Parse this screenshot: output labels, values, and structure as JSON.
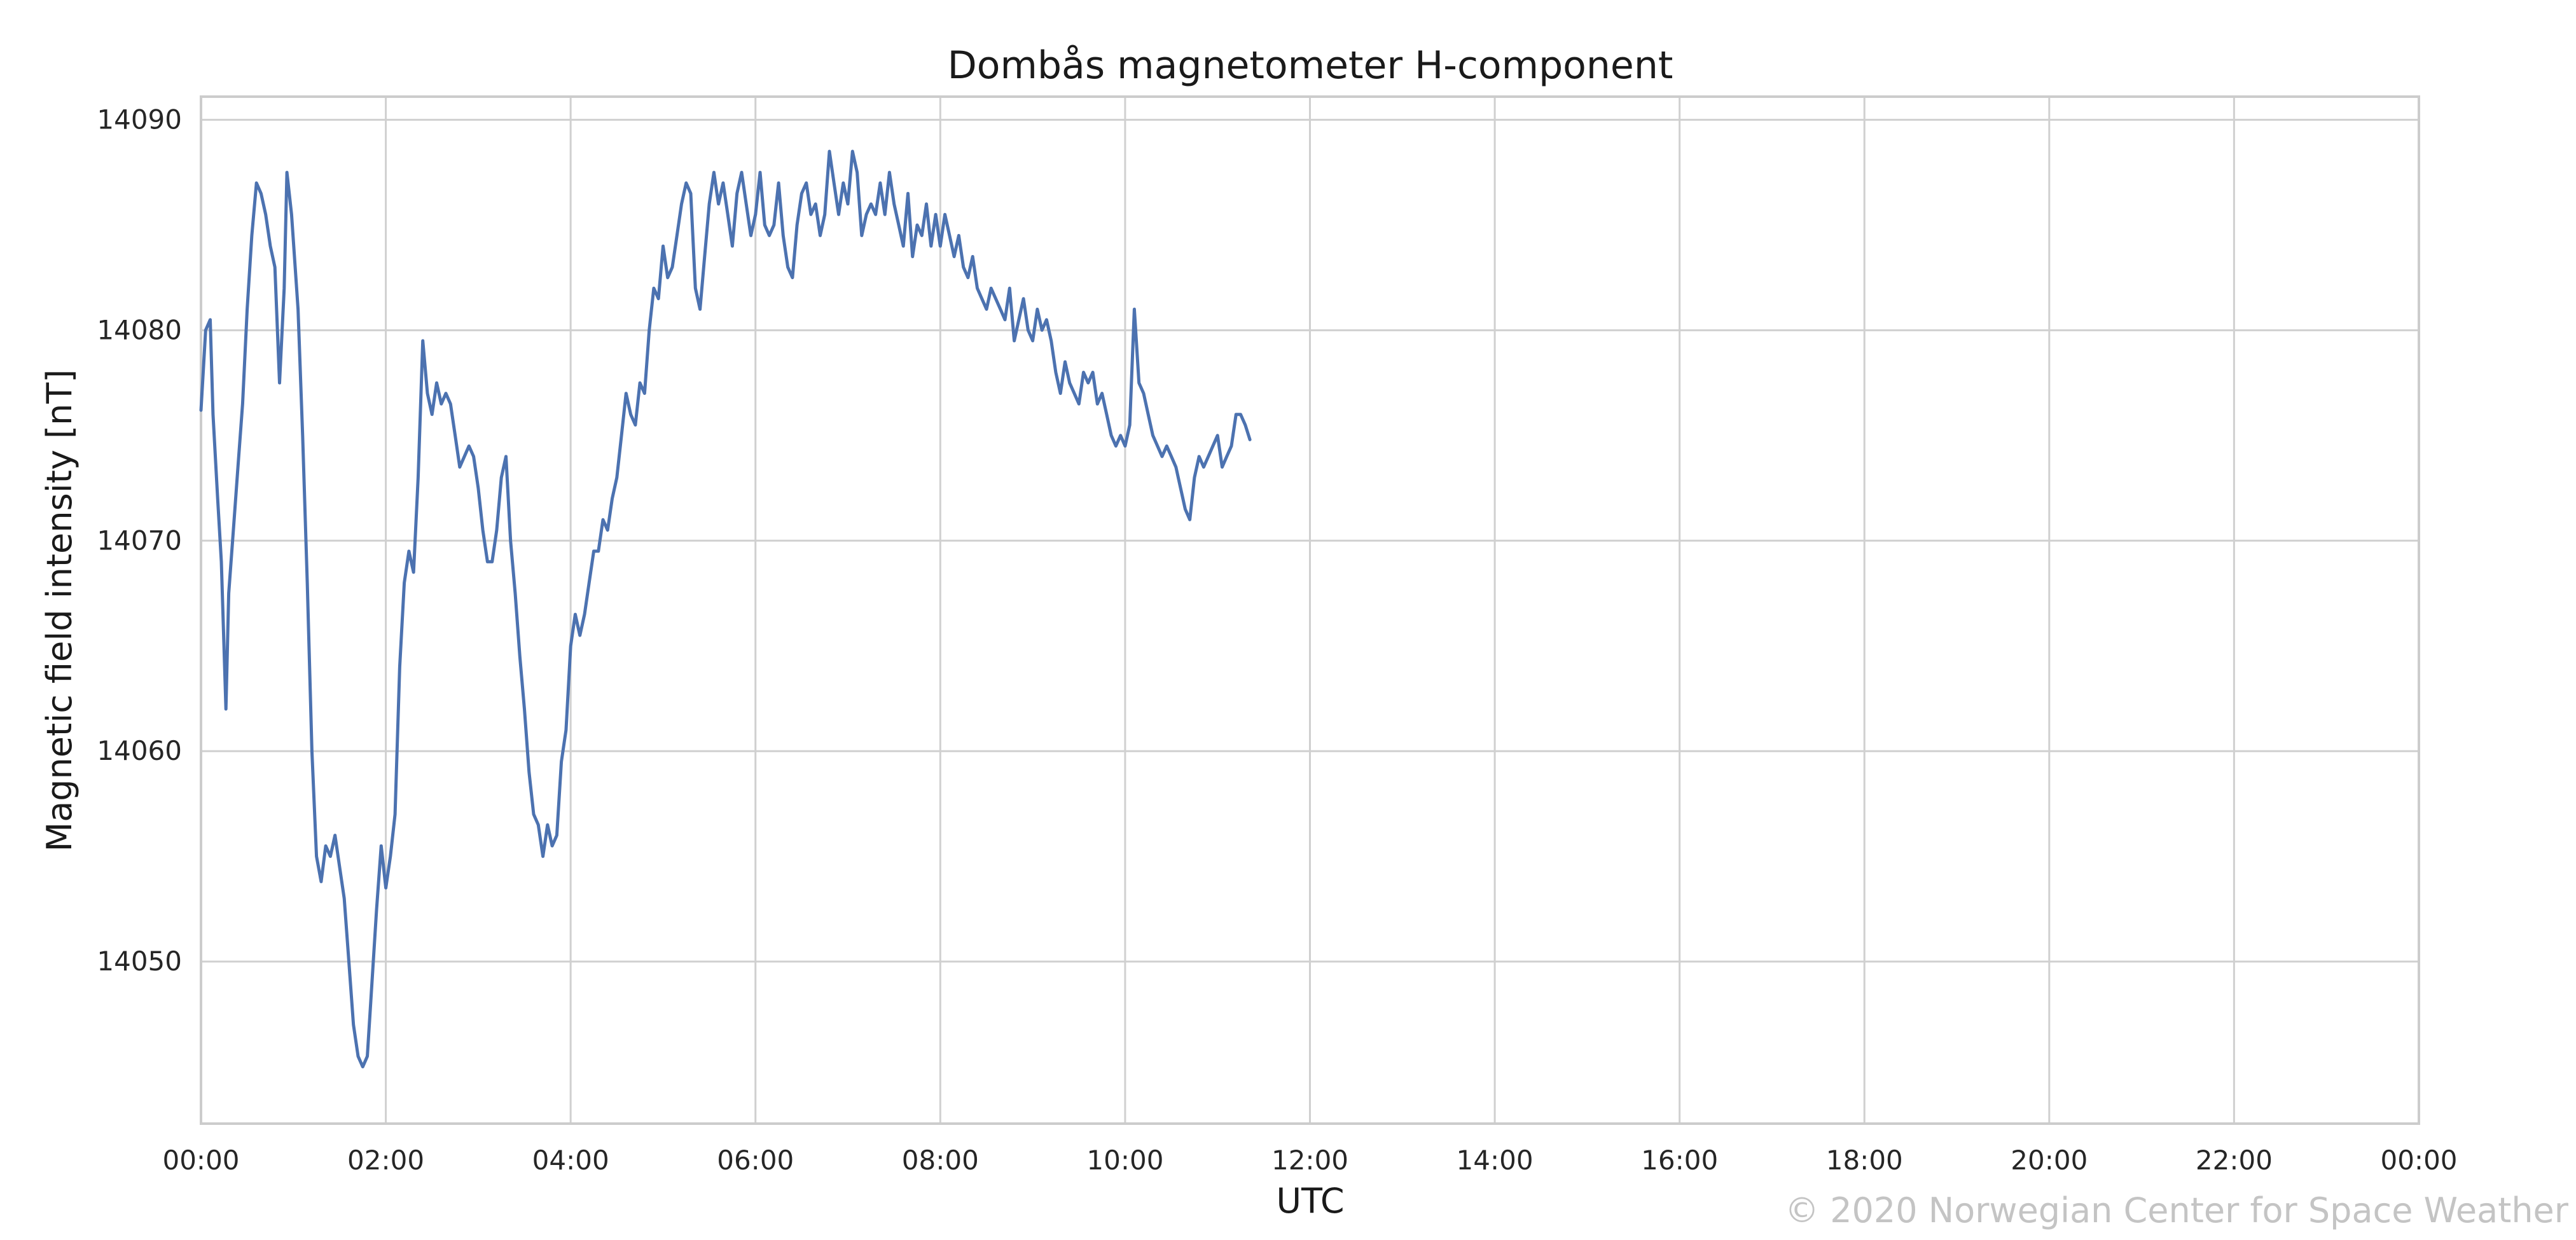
{
  "chart_data": {
    "type": "line",
    "title": "Dombås magnetometer H-component",
    "xlabel": "UTC",
    "ylabel": "Magnetic field intensity [nT]",
    "x_ticks": [
      "00:00",
      "02:00",
      "04:00",
      "06:00",
      "08:00",
      "10:00",
      "12:00",
      "14:00",
      "16:00",
      "18:00",
      "20:00",
      "22:00",
      "00:00"
    ],
    "y_ticks": [
      14050,
      14060,
      14070,
      14080,
      14090
    ],
    "xlim_hours": [
      0,
      24
    ],
    "ylim": [
      14042.3,
      14091.1
    ],
    "grid": true,
    "series": [
      {
        "color": "#4c72b0",
        "points": [
          [
            0.0,
            14076.2
          ],
          [
            0.05,
            14080.0
          ],
          [
            0.1,
            14080.5
          ],
          [
            0.13,
            14076.0
          ],
          [
            0.18,
            14072.0
          ],
          [
            0.22,
            14069.0
          ],
          [
            0.27,
            14062.0
          ],
          [
            0.3,
            14067.5
          ],
          [
            0.35,
            14070.5
          ],
          [
            0.4,
            14073.5
          ],
          [
            0.45,
            14076.5
          ],
          [
            0.5,
            14081.0
          ],
          [
            0.55,
            14084.5
          ],
          [
            0.6,
            14087.0
          ],
          [
            0.65,
            14086.5
          ],
          [
            0.7,
            14085.5
          ],
          [
            0.75,
            14084.0
          ],
          [
            0.8,
            14083.0
          ],
          [
            0.85,
            14077.5
          ],
          [
            0.9,
            14082.0
          ],
          [
            0.93,
            14087.5
          ],
          [
            0.98,
            14085.5
          ],
          [
            1.05,
            14081.0
          ],
          [
            1.1,
            14075.0
          ],
          [
            1.15,
            14068.0
          ],
          [
            1.2,
            14060.0
          ],
          [
            1.25,
            14055.0
          ],
          [
            1.3,
            14053.8
          ],
          [
            1.35,
            14055.5
          ],
          [
            1.4,
            14055.0
          ],
          [
            1.45,
            14056.0
          ],
          [
            1.5,
            14054.5
          ],
          [
            1.55,
            14053.0
          ],
          [
            1.6,
            14050.0
          ],
          [
            1.65,
            14047.0
          ],
          [
            1.7,
            14045.5
          ],
          [
            1.75,
            14045.0
          ],
          [
            1.8,
            14045.5
          ],
          [
            1.85,
            14049.0
          ],
          [
            1.9,
            14052.5
          ],
          [
            1.95,
            14055.5
          ],
          [
            2.0,
            14053.5
          ],
          [
            2.05,
            14055.0
          ],
          [
            2.1,
            14057.0
          ],
          [
            2.15,
            14064.0
          ],
          [
            2.2,
            14068.0
          ],
          [
            2.25,
            14069.5
          ],
          [
            2.3,
            14068.5
          ],
          [
            2.35,
            14073.0
          ],
          [
            2.4,
            14079.5
          ],
          [
            2.45,
            14077.0
          ],
          [
            2.5,
            14076.0
          ],
          [
            2.55,
            14077.5
          ],
          [
            2.6,
            14076.5
          ],
          [
            2.65,
            14077.0
          ],
          [
            2.7,
            14076.5
          ],
          [
            2.75,
            14075.0
          ],
          [
            2.8,
            14073.5
          ],
          [
            2.85,
            14074.0
          ],
          [
            2.9,
            14074.5
          ],
          [
            2.95,
            14074.0
          ],
          [
            3.0,
            14072.5
          ],
          [
            3.05,
            14070.5
          ],
          [
            3.1,
            14069.0
          ],
          [
            3.15,
            14069.0
          ],
          [
            3.2,
            14070.5
          ],
          [
            3.25,
            14073.0
          ],
          [
            3.3,
            14074.0
          ],
          [
            3.35,
            14070.0
          ],
          [
            3.4,
            14067.5
          ],
          [
            3.45,
            14064.5
          ],
          [
            3.5,
            14062.0
          ],
          [
            3.55,
            14059.0
          ],
          [
            3.6,
            14057.0
          ],
          [
            3.65,
            14056.5
          ],
          [
            3.7,
            14055.0
          ],
          [
            3.75,
            14056.5
          ],
          [
            3.8,
            14055.5
          ],
          [
            3.85,
            14056.0
          ],
          [
            3.9,
            14059.5
          ],
          [
            3.95,
            14061.0
          ],
          [
            4.0,
            14065.0
          ],
          [
            4.05,
            14066.5
          ],
          [
            4.1,
            14065.5
          ],
          [
            4.15,
            14066.5
          ],
          [
            4.2,
            14068.0
          ],
          [
            4.25,
            14069.5
          ],
          [
            4.3,
            14069.5
          ],
          [
            4.35,
            14071.0
          ],
          [
            4.4,
            14070.5
          ],
          [
            4.45,
            14072.0
          ],
          [
            4.5,
            14073.0
          ],
          [
            4.55,
            14075.0
          ],
          [
            4.6,
            14077.0
          ],
          [
            4.65,
            14076.0
          ],
          [
            4.7,
            14075.5
          ],
          [
            4.75,
            14077.5
          ],
          [
            4.8,
            14077.0
          ],
          [
            4.85,
            14080.0
          ],
          [
            4.9,
            14082.0
          ],
          [
            4.95,
            14081.5
          ],
          [
            5.0,
            14084.0
          ],
          [
            5.05,
            14082.5
          ],
          [
            5.1,
            14083.0
          ],
          [
            5.15,
            14084.5
          ],
          [
            5.2,
            14086.0
          ],
          [
            5.25,
            14087.0
          ],
          [
            5.3,
            14086.5
          ],
          [
            5.35,
            14082.0
          ],
          [
            5.4,
            14081.0
          ],
          [
            5.45,
            14083.5
          ],
          [
            5.5,
            14086.0
          ],
          [
            5.55,
            14087.5
          ],
          [
            5.6,
            14086.0
          ],
          [
            5.65,
            14087.0
          ],
          [
            5.7,
            14085.5
          ],
          [
            5.75,
            14084.0
          ],
          [
            5.8,
            14086.5
          ],
          [
            5.85,
            14087.5
          ],
          [
            5.9,
            14086.0
          ],
          [
            5.95,
            14084.5
          ],
          [
            6.0,
            14085.5
          ],
          [
            6.05,
            14087.5
          ],
          [
            6.1,
            14085.0
          ],
          [
            6.15,
            14084.5
          ],
          [
            6.2,
            14085.0
          ],
          [
            6.25,
            14087.0
          ],
          [
            6.3,
            14084.5
          ],
          [
            6.35,
            14083.0
          ],
          [
            6.4,
            14082.5
          ],
          [
            6.45,
            14085.0
          ],
          [
            6.5,
            14086.5
          ],
          [
            6.55,
            14087.0
          ],
          [
            6.6,
            14085.5
          ],
          [
            6.65,
            14086.0
          ],
          [
            6.7,
            14084.5
          ],
          [
            6.75,
            14085.5
          ],
          [
            6.8,
            14088.5
          ],
          [
            6.85,
            14087.0
          ],
          [
            6.9,
            14085.5
          ],
          [
            6.95,
            14087.0
          ],
          [
            7.0,
            14086.0
          ],
          [
            7.05,
            14088.5
          ],
          [
            7.1,
            14087.5
          ],
          [
            7.15,
            14084.5
          ],
          [
            7.2,
            14085.5
          ],
          [
            7.25,
            14086.0
          ],
          [
            7.3,
            14085.5
          ],
          [
            7.35,
            14087.0
          ],
          [
            7.4,
            14085.5
          ],
          [
            7.45,
            14087.5
          ],
          [
            7.5,
            14086.0
          ],
          [
            7.55,
            14085.0
          ],
          [
            7.6,
            14084.0
          ],
          [
            7.65,
            14086.5
          ],
          [
            7.7,
            14083.5
          ],
          [
            7.75,
            14085.0
          ],
          [
            7.8,
            14084.5
          ],
          [
            7.85,
            14086.0
          ],
          [
            7.9,
            14084.0
          ],
          [
            7.95,
            14085.5
          ],
          [
            8.0,
            14084.0
          ],
          [
            8.05,
            14085.5
          ],
          [
            8.1,
            14084.5
          ],
          [
            8.15,
            14083.5
          ],
          [
            8.2,
            14084.5
          ],
          [
            8.25,
            14083.0
          ],
          [
            8.3,
            14082.5
          ],
          [
            8.35,
            14083.5
          ],
          [
            8.4,
            14082.0
          ],
          [
            8.45,
            14081.5
          ],
          [
            8.5,
            14081.0
          ],
          [
            8.55,
            14082.0
          ],
          [
            8.6,
            14081.5
          ],
          [
            8.65,
            14081.0
          ],
          [
            8.7,
            14080.5
          ],
          [
            8.75,
            14082.0
          ],
          [
            8.8,
            14079.5
          ],
          [
            8.85,
            14080.5
          ],
          [
            8.9,
            14081.5
          ],
          [
            8.95,
            14080.0
          ],
          [
            9.0,
            14079.5
          ],
          [
            9.05,
            14081.0
          ],
          [
            9.1,
            14080.0
          ],
          [
            9.15,
            14080.5
          ],
          [
            9.2,
            14079.5
          ],
          [
            9.25,
            14078.0
          ],
          [
            9.3,
            14077.0
          ],
          [
            9.35,
            14078.5
          ],
          [
            9.4,
            14077.5
          ],
          [
            9.45,
            14077.0
          ],
          [
            9.5,
            14076.5
          ],
          [
            9.55,
            14078.0
          ],
          [
            9.6,
            14077.5
          ],
          [
            9.65,
            14078.0
          ],
          [
            9.7,
            14076.5
          ],
          [
            9.75,
            14077.0
          ],
          [
            9.8,
            14076.0
          ],
          [
            9.85,
            14075.0
          ],
          [
            9.9,
            14074.5
          ],
          [
            9.95,
            14075.0
          ],
          [
            10.0,
            14074.5
          ],
          [
            10.05,
            14075.5
          ],
          [
            10.1,
            14081.0
          ],
          [
            10.15,
            14077.5
          ],
          [
            10.2,
            14077.0
          ],
          [
            10.25,
            14076.0
          ],
          [
            10.3,
            14075.0
          ],
          [
            10.35,
            14074.5
          ],
          [
            10.4,
            14074.0
          ],
          [
            10.45,
            14074.5
          ],
          [
            10.5,
            14074.0
          ],
          [
            10.55,
            14073.5
          ],
          [
            10.6,
            14072.5
          ],
          [
            10.65,
            14071.5
          ],
          [
            10.7,
            14071.0
          ],
          [
            10.75,
            14073.0
          ],
          [
            10.8,
            14074.0
          ],
          [
            10.85,
            14073.5
          ],
          [
            10.9,
            14074.0
          ],
          [
            10.95,
            14074.5
          ],
          [
            11.0,
            14075.0
          ],
          [
            11.05,
            14073.5
          ],
          [
            11.1,
            14074.0
          ],
          [
            11.15,
            14074.5
          ],
          [
            11.2,
            14076.0
          ],
          [
            11.25,
            14076.0
          ],
          [
            11.3,
            14075.5
          ],
          [
            11.35,
            14074.8
          ]
        ]
      }
    ]
  },
  "footer": {
    "copyright": "© 2020 Norwegian Center for Space Weather"
  }
}
